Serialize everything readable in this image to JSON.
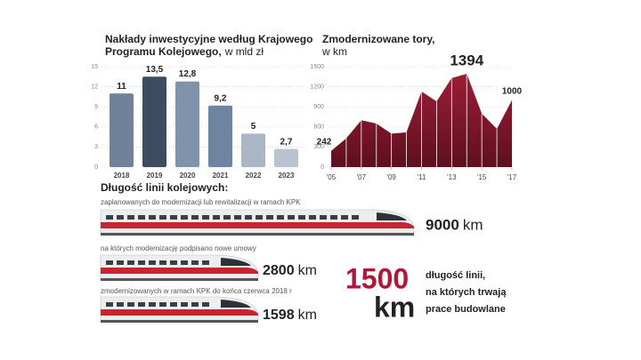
{
  "chart_data": [
    {
      "type": "bar",
      "title": [
        "Nakłady inwestycyjne według Krajowego",
        "Programu Kolejowego,"
      ],
      "subtitle": "w mld zł",
      "categories": [
        "2018",
        "2019",
        "2020",
        "2021",
        "2022",
        "2023"
      ],
      "values": [
        11,
        13.5,
        12.8,
        9.2,
        5,
        2.7
      ],
      "value_labels": [
        "11",
        "13,5",
        "12,8",
        "9,2",
        "5",
        "2,7"
      ],
      "colors": [
        "#6f8299",
        "#3d4d5f",
        "#7f93aa",
        "#6f84a0",
        "#a9b6c6",
        "#b9c3d0"
      ],
      "ylim": [
        0,
        15
      ],
      "yticks": [
        0,
        3,
        6,
        9,
        12,
        15
      ],
      "grid": true
    },
    {
      "type": "area",
      "title": [
        "Zmodernizowane tory,"
      ],
      "subtitle": "w km",
      "x": [
        2005,
        2006,
        2007,
        2008,
        2009,
        2010,
        2011,
        2012,
        2013,
        2014,
        2015,
        2016,
        2017
      ],
      "values": [
        242,
        430,
        700,
        650,
        500,
        520,
        1130,
        980,
        1330,
        1394,
        800,
        570,
        1000
      ],
      "value_labels": [
        "242",
        null,
        null,
        null,
        null,
        null,
        null,
        null,
        null,
        "1394",
        null,
        null,
        "1000"
      ],
      "color": "#8b1a2f",
      "xlim": [
        2005,
        2017
      ],
      "xticks": [
        {
          "value": 2005,
          "label": "'05"
        },
        {
          "value": 2007,
          "label": "'07"
        },
        {
          "value": 2009,
          "label": "'09"
        },
        {
          "value": 2011,
          "label": "'11"
        },
        {
          "value": 2013,
          "label": "'13"
        },
        {
          "value": 2015,
          "label": "'15"
        },
        {
          "value": 2017,
          "label": "'17"
        }
      ],
      "ylim": [
        0,
        1500
      ],
      "yticks": [
        0,
        300,
        600,
        900,
        1200,
        1500
      ],
      "grid": true
    }
  ],
  "lengths": {
    "title": "Długość linii kolejowych:",
    "items": [
      {
        "description": "zaplanowanych do modernizacji lub rewitalizacji w ramach KPK",
        "value": 9000,
        "unit": "km"
      },
      {
        "description": "na których modernizację podpisano nowe umowy",
        "value": 2800,
        "unit": "km"
      },
      {
        "description": "zmodernizowanych w ramach KPK do końca czerwca 2018 r",
        "value": 1598,
        "unit": "km"
      }
    ]
  },
  "highlight": {
    "value": 1500,
    "unit": "km",
    "text": [
      "długość linii,",
      "na których trwają",
      "prace budowlane"
    ]
  }
}
